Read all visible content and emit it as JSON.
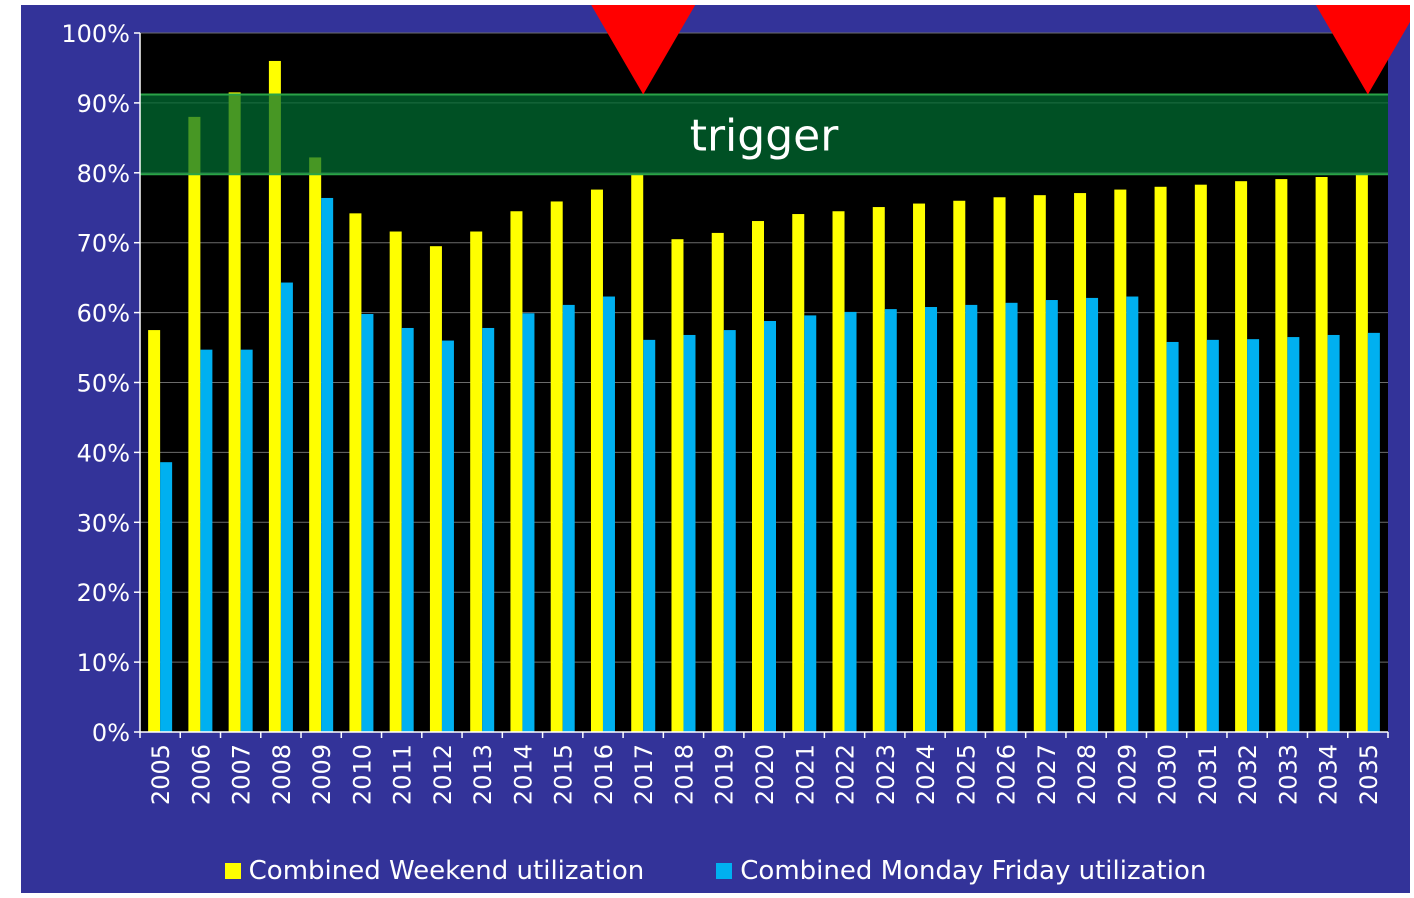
{
  "chart_data": {
    "type": "bar",
    "categories": [
      "2005",
      "2006",
      "2007",
      "2008",
      "2009",
      "2010",
      "2011",
      "2012",
      "2013",
      "2014",
      "2015",
      "2016",
      "2017",
      "2018",
      "2019",
      "2020",
      "2021",
      "2022",
      "2023",
      "2024",
      "2025",
      "2026",
      "2027",
      "2028",
      "2029",
      "2030",
      "2031",
      "2032",
      "2033",
      "2034",
      "2035"
    ],
    "series": [
      {
        "name": "Combined Weekend utilization",
        "color": "#ffff00",
        "values": [
          57.5,
          88,
          91.5,
          96,
          82.2,
          74.2,
          71.6,
          69.5,
          71.6,
          74.5,
          75.9,
          77.6,
          79.7,
          70.5,
          71.4,
          73.1,
          74.1,
          74.5,
          75.1,
          75.6,
          76,
          76.5,
          76.8,
          77.1,
          77.6,
          78,
          78.3,
          78.8,
          79.1,
          79.4,
          79.8
        ]
      },
      {
        "name": "Combined Monday Friday utilization",
        "color": "#00b0f0",
        "values": [
          38.6,
          54.7,
          54.7,
          64.3,
          76.4,
          59.8,
          57.8,
          56,
          57.8,
          59.9,
          61.1,
          62.3,
          56.1,
          56.8,
          57.5,
          58.8,
          59.6,
          60.1,
          60.5,
          60.8,
          61.1,
          61.4,
          61.8,
          62.1,
          62.3,
          55.8,
          56.1,
          56.2,
          56.5,
          56.8,
          57.1
        ]
      }
    ],
    "ylim": [
      0,
      100
    ],
    "yticks": [
      "0%",
      "10%",
      "20%",
      "30%",
      "40%",
      "50%",
      "60%",
      "70%",
      "80%",
      "90%",
      "100%"
    ],
    "trigger_band": {
      "label": "trigger",
      "from": 79.8,
      "to": 91.2,
      "color": "#006f32"
    },
    "markers": {
      "shape": "down-triangle",
      "color": "#ff0000",
      "categories": [
        "2017",
        "2035"
      ]
    },
    "grid": true,
    "legend_position": "bottom",
    "plot_background": "#000000",
    "background": "#333399"
  }
}
